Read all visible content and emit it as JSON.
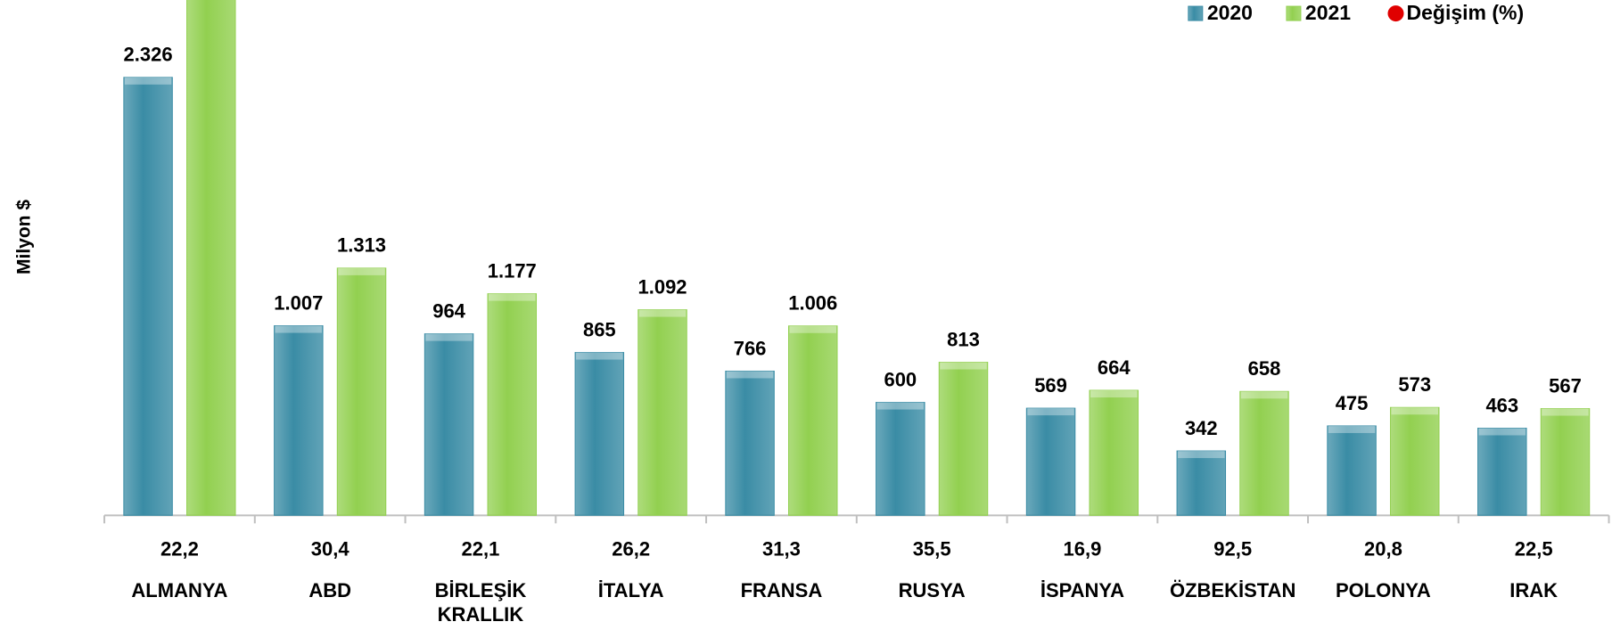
{
  "chart_data": {
    "type": "bar",
    "y_label": "Milyon $",
    "categories": [
      "ALMANYA",
      "ABD",
      "BİRLEŞİK KRALLIK",
      "İTALYA",
      "FRANSA",
      "RUSYA",
      "İSPANYA",
      "ÖZBEKİSTAN",
      "POLONYA",
      "IRAK"
    ],
    "series": [
      {
        "name": "2020",
        "color": "#3a8ca5",
        "values": [
          2326,
          1007,
          964,
          865,
          766,
          600,
          569,
          342,
          475,
          463
        ],
        "value_labels": [
          "2.326",
          "1.007",
          "964",
          "865",
          "766",
          "600",
          "569",
          "342",
          "475",
          "463"
        ]
      },
      {
        "name": "2021",
        "color": "#92d050",
        "values": [
          2842,
          1313,
          1177,
          1092,
          1006,
          813,
          664,
          658,
          573,
          567
        ],
        "value_labels": [
          null,
          "1.313",
          "1.177",
          "1.092",
          "1.006",
          "813",
          "664",
          "658",
          "573",
          "567"
        ]
      },
      {
        "name": "Değişim (%)",
        "color": "#e00000",
        "values": [
          22.2,
          30.4,
          22.1,
          26.2,
          31.3,
          35.5,
          16.9,
          92.5,
          20.8,
          22.5
        ],
        "value_labels": [
          "22,2",
          "30,4",
          "22,1",
          "26,2",
          "31,3",
          "35,5",
          "16,9",
          "92,5",
          "20,8",
          "22,5"
        ]
      }
    ],
    "ylim": [
      0,
      2737
    ]
  }
}
